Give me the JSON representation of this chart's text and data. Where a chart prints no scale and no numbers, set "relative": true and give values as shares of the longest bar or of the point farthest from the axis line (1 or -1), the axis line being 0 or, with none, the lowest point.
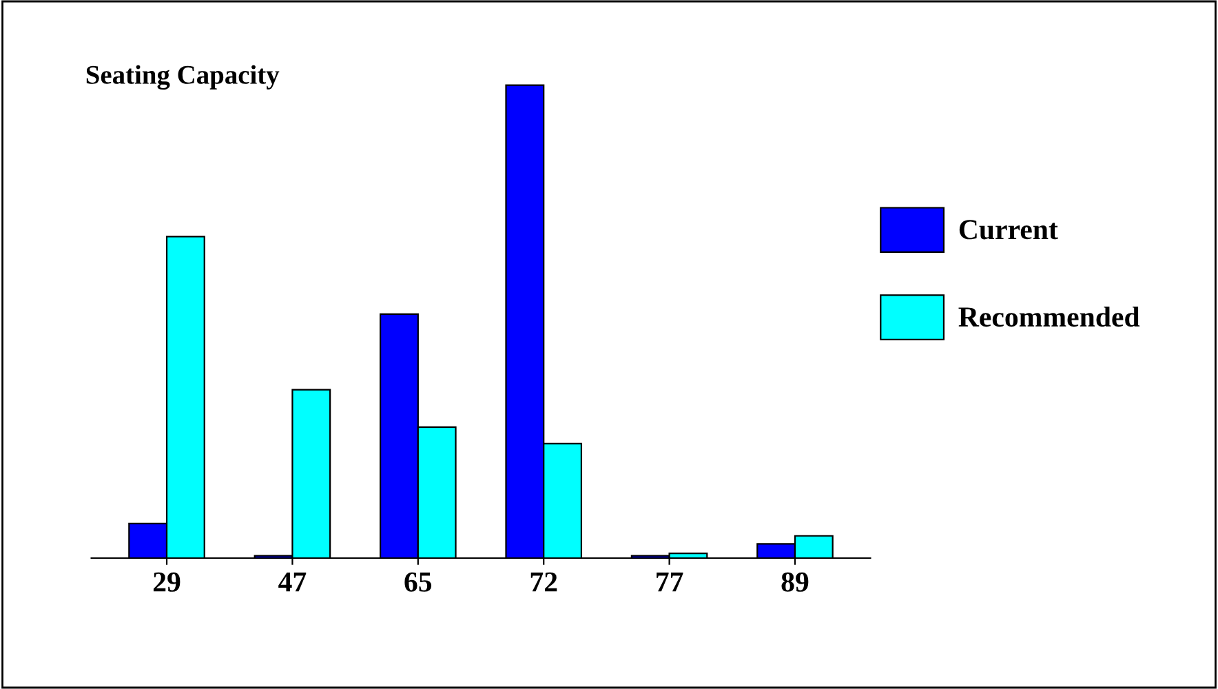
{
  "chart_data": {
    "type": "bar",
    "title": "Seating Capacity",
    "relative": true,
    "categories": [
      "29",
      "47",
      "65",
      "72",
      "77",
      "89"
    ],
    "series": [
      {
        "name": "Current",
        "color": "#0000ff",
        "values": [
          0.073,
          0.005,
          0.516,
          1.0,
          0.005,
          0.03
        ]
      },
      {
        "name": "Recommended",
        "color": "#00ffff",
        "values": [
          0.68,
          0.356,
          0.277,
          0.242,
          0.01,
          0.047
        ]
      }
    ],
    "legend": "right",
    "grid": false
  }
}
